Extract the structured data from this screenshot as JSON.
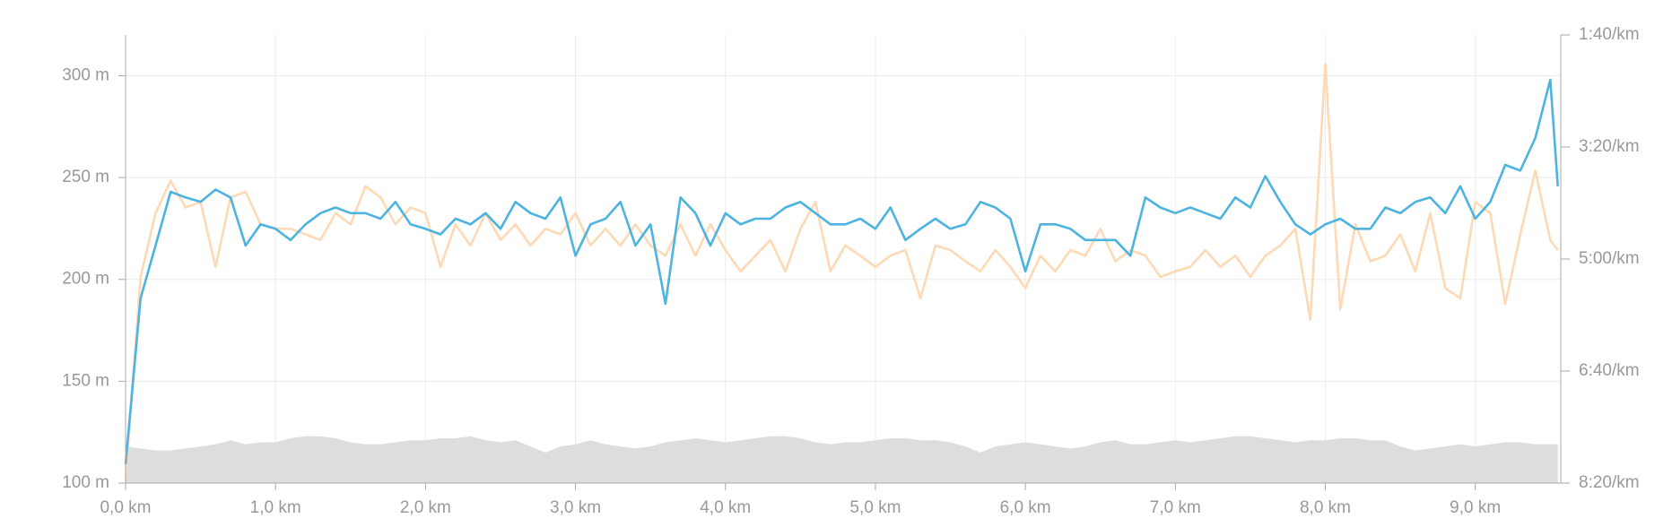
{
  "chart_data": {
    "type": "line",
    "x": [
      0,
      0.1,
      0.2,
      0.3,
      0.4,
      0.5,
      0.6,
      0.7,
      0.8,
      0.9,
      1.0,
      1.1,
      1.2,
      1.3,
      1.4,
      1.5,
      1.6,
      1.7,
      1.8,
      1.9,
      2.0,
      2.1,
      2.2,
      2.3,
      2.4,
      2.5,
      2.6,
      2.7,
      2.8,
      2.9,
      3.0,
      3.1,
      3.2,
      3.3,
      3.4,
      3.5,
      3.6,
      3.7,
      3.8,
      3.9,
      4.0,
      4.1,
      4.2,
      4.3,
      4.4,
      4.5,
      4.6,
      4.7,
      4.8,
      4.9,
      5.0,
      5.1,
      5.2,
      5.3,
      5.4,
      5.5,
      5.6,
      5.7,
      5.8,
      5.9,
      6.0,
      6.1,
      6.2,
      6.3,
      6.4,
      6.5,
      6.6,
      6.7,
      6.8,
      6.9,
      7.0,
      7.1,
      7.2,
      7.3,
      7.4,
      7.5,
      7.6,
      7.7,
      7.8,
      7.9,
      8.0,
      8.1,
      8.2,
      8.3,
      8.4,
      8.5,
      8.6,
      8.7,
      8.8,
      8.9,
      9.0,
      9.1,
      9.2,
      9.3,
      9.4,
      9.5,
      9.55
    ],
    "series": [
      {
        "type": "area",
        "color": "#dddddd",
        "values": [
          118,
          117,
          116,
          116,
          117,
          118,
          119,
          121,
          119,
          120,
          120,
          122,
          123,
          123,
          122,
          120,
          119,
          119,
          120,
          121,
          121,
          122,
          122,
          123,
          121,
          120,
          121,
          118,
          115,
          118,
          119,
          121,
          119,
          118,
          117,
          118,
          120,
          121,
          122,
          121,
          120,
          121,
          122,
          123,
          123,
          122,
          120,
          119,
          120,
          120,
          121,
          122,
          122,
          121,
          121,
          120,
          118,
          115,
          118,
          119,
          120,
          119,
          118,
          117,
          118,
          120,
          121,
          119,
          119,
          120,
          121,
          120,
          121,
          122,
          123,
          123,
          122,
          121,
          120,
          121,
          121,
          122,
          122,
          121,
          121,
          118,
          116,
          117,
          118,
          119,
          118,
          119,
          120,
          120,
          119,
          119,
          119
        ]
      },
      {
        "color": "#fdd9b5",
        "axis": "y2",
        "values": [
          497,
          316,
          259,
          230,
          254,
          249,
          307,
          245,
          240,
          269,
          273,
          273,
          278,
          283,
          259,
          269,
          235,
          245,
          269,
          254,
          259,
          307,
          269,
          288,
          259,
          283,
          269,
          288,
          273,
          278,
          259,
          288,
          273,
          288,
          269,
          288,
          297,
          269,
          297,
          269,
          292,
          311,
          297,
          283,
          311,
          273,
          249,
          311,
          288,
          297,
          307,
          297,
          292,
          335,
          288,
          292,
          302,
          311,
          292,
          307,
          326,
          297,
          311,
          292,
          297,
          273,
          302,
          292,
          297,
          316,
          311,
          307,
          292,
          307,
          297,
          316,
          297,
          288,
          273,
          354,
          126,
          345,
          269,
          302,
          297,
          278,
          311,
          259,
          326,
          335,
          249,
          259,
          340,
          278,
          221,
          283,
          292
        ]
      },
      {
        "color": "#4db3df",
        "axis": "y2",
        "values": [
          483,
          335,
          288,
          240,
          245,
          249,
          238,
          245,
          288,
          269,
          273,
          283,
          269,
          259,
          254,
          259,
          259,
          264,
          249,
          269,
          273,
          278,
          264,
          269,
          259,
          273,
          249,
          259,
          264,
          245,
          297,
          269,
          264,
          249,
          288,
          269,
          340,
          245,
          259,
          288,
          259,
          269,
          264,
          264,
          254,
          249,
          259,
          269,
          269,
          264,
          273,
          254,
          283,
          273,
          264,
          273,
          269,
          249,
          254,
          264,
          311,
          269,
          269,
          273,
          283,
          283,
          283,
          297,
          245,
          254,
          259,
          254,
          259,
          264,
          245,
          254,
          226,
          249,
          269,
          278,
          269,
          264,
          273,
          273,
          254,
          259,
          249,
          245,
          259,
          235,
          264,
          249,
          216,
          221,
          192,
          140,
          235
        ]
      }
    ],
    "xlim": [
      0,
      9.57
    ],
    "xticks": [
      {
        "value": 0,
        "label": "0,0 km"
      },
      {
        "value": 1,
        "label": "1,0 km"
      },
      {
        "value": 2,
        "label": "2,0 km"
      },
      {
        "value": 3,
        "label": "3,0 km"
      },
      {
        "value": 4,
        "label": "4,0 km"
      },
      {
        "value": 5,
        "label": "5,0 km"
      },
      {
        "value": 6,
        "label": "6,0 km"
      },
      {
        "value": 7,
        "label": "7,0 km"
      },
      {
        "value": 8,
        "label": "8,0 km"
      },
      {
        "value": 9,
        "label": "9,0 km"
      }
    ],
    "ylim": [
      100,
      320
    ],
    "yticks": [
      {
        "value": 100,
        "label": "100 m"
      },
      {
        "value": 150,
        "label": "150 m"
      },
      {
        "value": 200,
        "label": "200 m"
      },
      {
        "value": 250,
        "label": "250 m"
      },
      {
        "value": 300,
        "label": "300 m"
      }
    ],
    "y2lim": [
      500,
      100
    ],
    "y2ticks": [
      {
        "value": 100,
        "label": "1:40/km"
      },
      {
        "value": 200,
        "label": "3:20/km"
      },
      {
        "value": 300,
        "label": "5:00/km"
      },
      {
        "value": 400,
        "label": "6:40/km"
      },
      {
        "value": 500,
        "label": "8:20/km"
      }
    ],
    "grid": true
  }
}
